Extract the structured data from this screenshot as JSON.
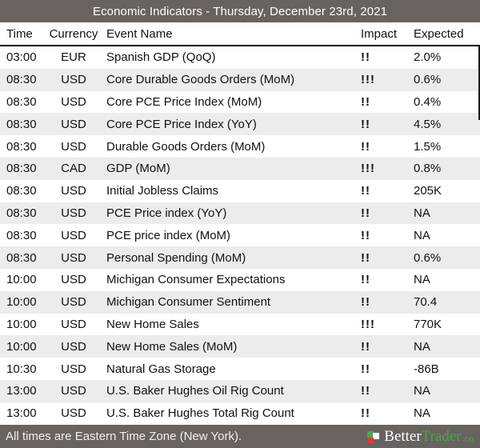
{
  "title_bar": {
    "title": "Economic Indicators - Thursday, December 23rd, 2021"
  },
  "table": {
    "columns": [
      "Time",
      "Currency",
      "Event Name",
      "Impact",
      "Expected"
    ],
    "rows": [
      {
        "time": "03:00",
        "currency": "EUR",
        "event": "Spanish GDP (QoQ)",
        "impact": "!!",
        "expected": "2.0%"
      },
      {
        "time": "08:30",
        "currency": "USD",
        "event": "Core Durable Goods Orders (MoM)",
        "impact": "!!!",
        "expected": "0.6%"
      },
      {
        "time": "08:30",
        "currency": "USD",
        "event": "Core PCE Price Index (MoM)",
        "impact": "!!",
        "expected": "0.4%"
      },
      {
        "time": "08:30",
        "currency": "USD",
        "event": "Core PCE Price Index (YoY)",
        "impact": "!!",
        "expected": "4.5%"
      },
      {
        "time": "08:30",
        "currency": "USD",
        "event": "Durable Goods Orders (MoM)",
        "impact": "!!",
        "expected": "1.5%"
      },
      {
        "time": "08:30",
        "currency": "CAD",
        "event": "GDP (MoM)",
        "impact": "!!!",
        "expected": "0.8%"
      },
      {
        "time": "08:30",
        "currency": "USD",
        "event": "Initial Jobless Claims",
        "impact": "!!",
        "expected": "205K"
      },
      {
        "time": "08:30",
        "currency": "USD",
        "event": "PCE Price index (YoY)",
        "impact": "!!",
        "expected": "NA"
      },
      {
        "time": "08:30",
        "currency": "USD",
        "event": "PCE price index (MoM)",
        "impact": "!!",
        "expected": "NA"
      },
      {
        "time": "08:30",
        "currency": "USD",
        "event": "Personal Spending (MoM)",
        "impact": "!!",
        "expected": "0.6%"
      },
      {
        "time": "10:00",
        "currency": "USD",
        "event": "Michigan Consumer Expectations",
        "impact": "!!",
        "expected": "NA"
      },
      {
        "time": "10:00",
        "currency": "USD",
        "event": "Michigan Consumer Sentiment",
        "impact": "!!",
        "expected": "70.4"
      },
      {
        "time": "10:00",
        "currency": "USD",
        "event": "New Home Sales",
        "impact": "!!!",
        "expected": "770K"
      },
      {
        "time": "10:00",
        "currency": "USD",
        "event": "New Home Sales (MoM)",
        "impact": "!!",
        "expected": "NA"
      },
      {
        "time": "10:30",
        "currency": "USD",
        "event": "Natural Gas Storage",
        "impact": "!!",
        "expected": "-86B"
      },
      {
        "time": "13:00",
        "currency": "USD",
        "event": "U.S. Baker Hughes Oil Rig Count",
        "impact": "!!",
        "expected": "NA"
      },
      {
        "time": "13:00",
        "currency": "USD",
        "event": "U.S. Baker Hughes Total Rig Count",
        "impact": "!!",
        "expected": "NA"
      }
    ]
  },
  "footer": {
    "note": "All times are Eastern Time Zone (New York).",
    "brand": {
      "better": "Better",
      "trader": "Trader",
      "suffix": ".co"
    }
  },
  "colors": {
    "header_bg": "#676361",
    "stripe": "#ececec",
    "text": "#111111",
    "bar_text": "#f2f0ef",
    "brand_green": "#49a54c",
    "logo_red": "#de3a31",
    "rule": "#000000"
  }
}
